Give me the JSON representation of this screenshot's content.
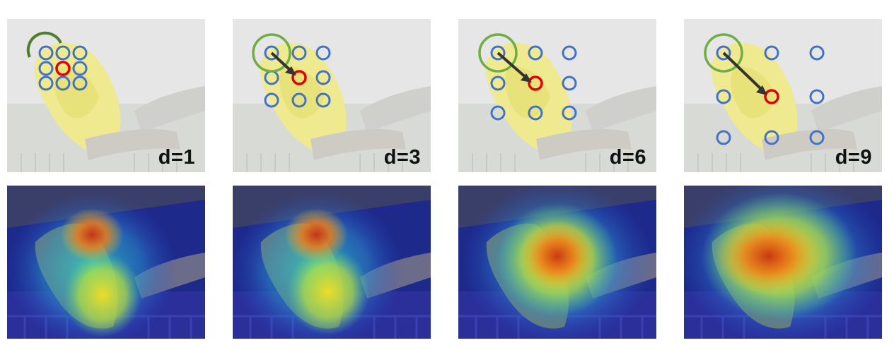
{
  "figure": {
    "rows": [
      "dilated-sampling-grid",
      "attention-heatmap"
    ],
    "panels": [
      {
        "label": "d=1",
        "dilation": 1
      },
      {
        "label": "d=3",
        "dilation": 3
      },
      {
        "label": "d=6",
        "dilation": 6
      },
      {
        "label": "d=9",
        "dilation": 9
      }
    ],
    "colors": {
      "sample_points": "#4472c4",
      "center_point": "#e00000",
      "origin_circle": "#70ad47",
      "arrow": "#333333"
    }
  }
}
